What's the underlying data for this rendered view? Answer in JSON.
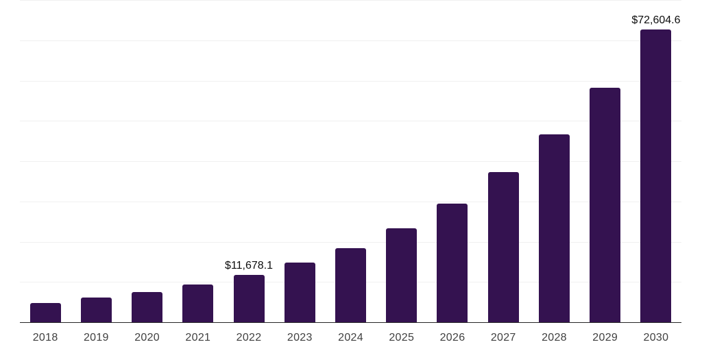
{
  "chart_data": {
    "type": "bar",
    "title": "",
    "xlabel": "",
    "ylabel": "",
    "categories": [
      "2018",
      "2019",
      "2020",
      "2021",
      "2022",
      "2023",
      "2024",
      "2025",
      "2026",
      "2027",
      "2028",
      "2029",
      "2030"
    ],
    "values": [
      4850,
      6100,
      7450,
      9300,
      11678.1,
      14800,
      18400,
      23400,
      29450,
      37300,
      46700,
      58200,
      72604.6
    ],
    "data_labels": [
      {
        "category": "2022",
        "text": "$11,678.1"
      },
      {
        "category": "2030",
        "text": "$72,604.6"
      }
    ],
    "ylim": [
      0,
      80000
    ],
    "grid_step": 10000,
    "grid": true,
    "y_axis_labels_visible": false,
    "legend_position": "none",
    "colors": {
      "bar": "#341250",
      "grid": "#f0f0f0",
      "axis": "#262626",
      "tick_label": "#404040",
      "data_label": "#0d0d0d",
      "background": "#ffffff"
    }
  }
}
